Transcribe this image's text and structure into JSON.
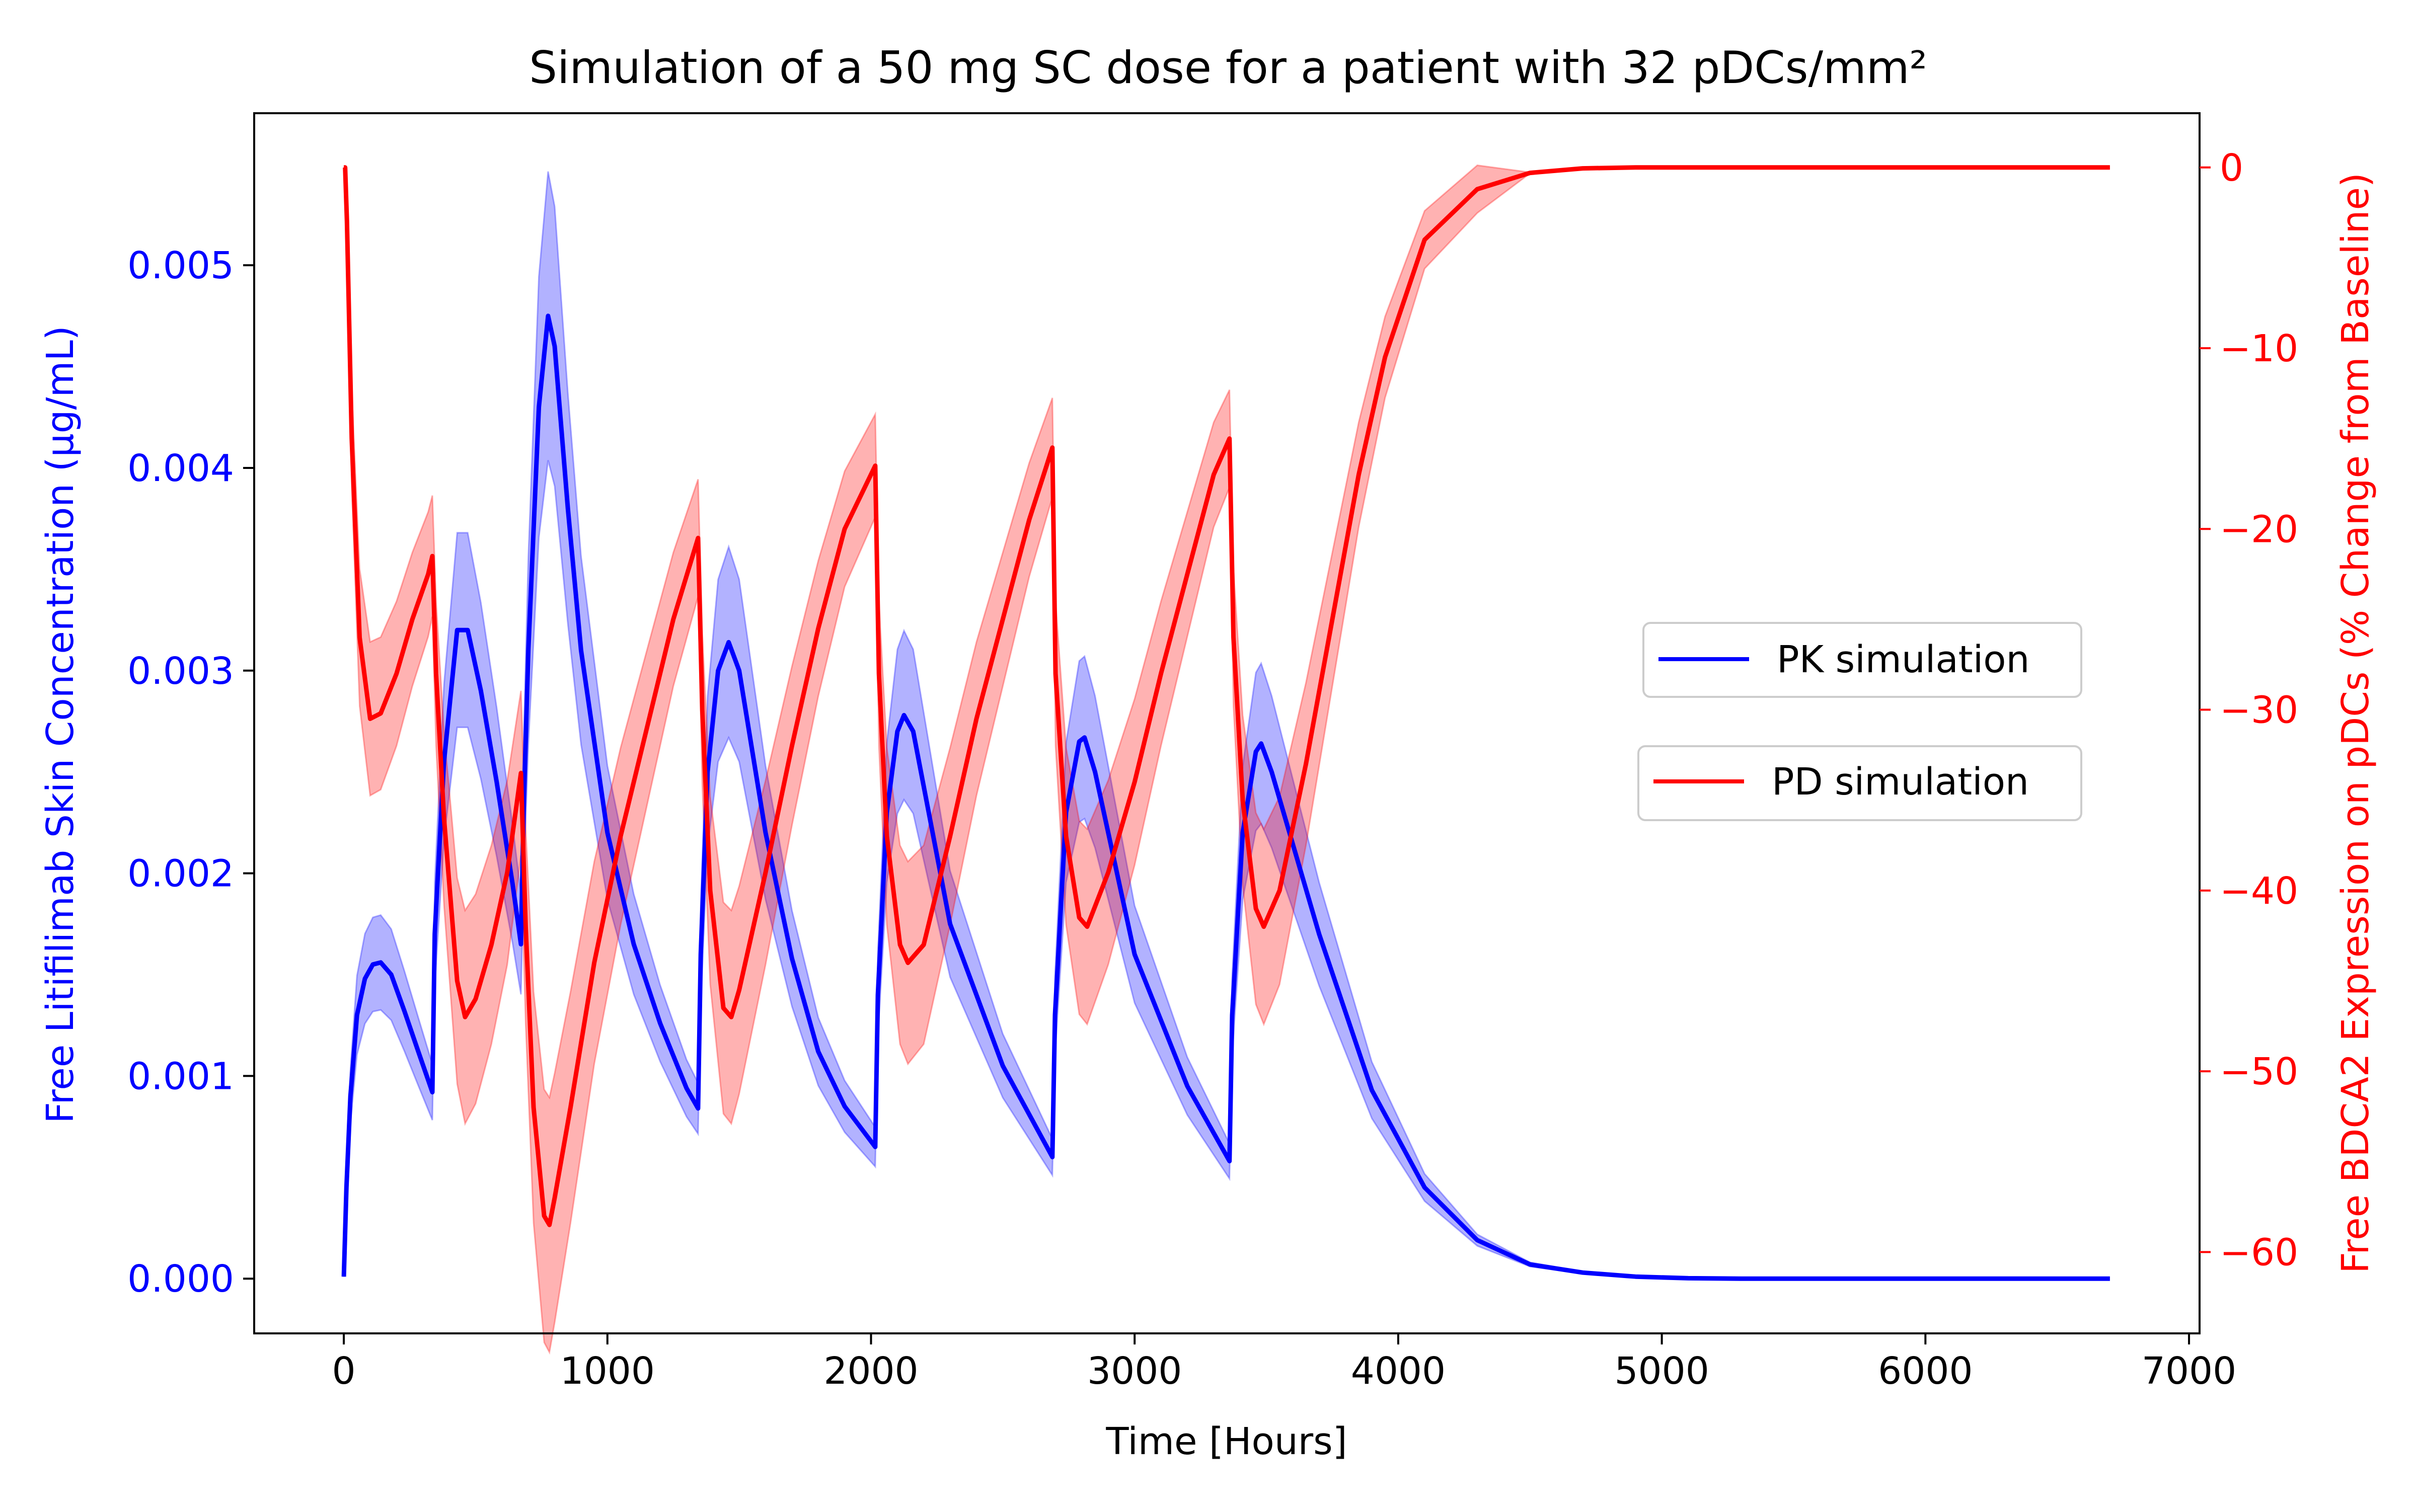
{
  "chart_data": {
    "type": "line",
    "title": "Simulation of a 50 mg SC dose for a patient with 32 pDCs/mm²",
    "xlabel": "Time [Hours]",
    "ylabel_left": "Free Litifilimab Skin Concentration (µg/mL)",
    "ylabel_right": "Free BDCA2 Expression on pDCs (% Change from Baseline)",
    "xlim": [
      -340,
      7040
    ],
    "ylim_left": [
      -0.00027,
      0.00575
    ],
    "ylim_right": [
      -64.5,
      3.0
    ],
    "x_ticks": [
      0,
      1000,
      2000,
      3000,
      4000,
      5000,
      6000,
      7000
    ],
    "x_tick_labels": [
      "0",
      "1000",
      "2000",
      "3000",
      "4000",
      "5000",
      "6000",
      "7000"
    ],
    "y_ticks_left": [
      0.0,
      0.001,
      0.002,
      0.003,
      0.004,
      0.005
    ],
    "y_tick_labels_left": [
      "0.000",
      "0.001",
      "0.002",
      "0.003",
      "0.004",
      "0.005"
    ],
    "y_ticks_right": [
      0,
      -10,
      -20,
      -30,
      -40,
      -50,
      -60
    ],
    "y_tick_labels_right": [
      "0",
      "−10",
      "−20",
      "−30",
      "−40",
      "−50",
      "−60"
    ],
    "grid": false,
    "legend_placement": "center-right",
    "colors": {
      "pk": "#0000ff",
      "pd": "#ff0000",
      "left_axis": "#0000ff",
      "right_axis": "#ff0000"
    },
    "series": [
      {
        "name": "PK simulation",
        "axis": "left",
        "x": [
          0,
          10,
          25,
          50,
          80,
          110,
          140,
          180,
          230,
          280,
          336,
          345,
          380,
          430,
          470,
          520,
          580,
          640,
          672,
          682,
          700,
          740,
          775,
          800,
          850,
          900,
          1000,
          1100,
          1200,
          1300,
          1344,
          1354,
          1380,
          1420,
          1460,
          1500,
          1600,
          1700,
          1800,
          1900,
          2016,
          2026,
          2060,
          2100,
          2125,
          2160,
          2300,
          2500,
          2688,
          2698,
          2740,
          2790,
          2810,
          2850,
          3000,
          3200,
          3360,
          3370,
          3410,
          3460,
          3480,
          3520,
          3700,
          3900,
          4100,
          4300,
          4500,
          4700,
          4900,
          5100,
          5300,
          5600,
          6000,
          6400,
          6700
        ],
        "y": [
          1e-05,
          0.00045,
          0.0009,
          0.0013,
          0.00148,
          0.00155,
          0.00156,
          0.0015,
          0.00132,
          0.00113,
          0.00092,
          0.0017,
          0.00255,
          0.0032,
          0.0032,
          0.0029,
          0.00245,
          0.00195,
          0.00165,
          0.0023,
          0.0031,
          0.0043,
          0.00475,
          0.0046,
          0.0038,
          0.0031,
          0.0022,
          0.00165,
          0.00126,
          0.00094,
          0.00084,
          0.0016,
          0.0025,
          0.003,
          0.00314,
          0.003,
          0.0022,
          0.00158,
          0.00112,
          0.00085,
          0.00065,
          0.0014,
          0.0023,
          0.0027,
          0.00278,
          0.0027,
          0.00175,
          0.00105,
          0.0006,
          0.0013,
          0.0023,
          0.00265,
          0.00267,
          0.0025,
          0.0016,
          0.00095,
          0.00058,
          0.0013,
          0.0022,
          0.0026,
          0.00264,
          0.0025,
          0.0017,
          0.00093,
          0.00045,
          0.00019,
          7e-05,
          3e-05,
          1e-05,
          2e-06,
          0.0,
          0.0,
          0.0,
          0.0,
          0.0
        ]
      },
      {
        "name": "PD simulation",
        "axis": "right",
        "x": [
          0,
          5,
          12,
          30,
          60,
          100,
          140,
          200,
          260,
          320,
          336,
          350,
          380,
          430,
          460,
          500,
          560,
          620,
          672,
          690,
          720,
          760,
          780,
          800,
          860,
          950,
          1050,
          1150,
          1250,
          1344,
          1360,
          1390,
          1440,
          1470,
          1500,
          1600,
          1700,
          1800,
          1900,
          2016,
          2030,
          2060,
          2110,
          2140,
          2200,
          2300,
          2400,
          2500,
          2600,
          2688,
          2700,
          2740,
          2790,
          2820,
          2900,
          3000,
          3100,
          3200,
          3300,
          3360,
          3375,
          3410,
          3460,
          3490,
          3550,
          3650,
          3750,
          3850,
          3950,
          4100,
          4300,
          4500,
          4700,
          4900,
          5100,
          5300,
          5600,
          6000,
          6400,
          6700
        ],
        "y": [
          0,
          0,
          -3,
          -15,
          -26,
          -30.5,
          -30.2,
          -28,
          -25,
          -22.5,
          -21.5,
          -28,
          -36,
          -45,
          -47,
          -46,
          -43,
          -39,
          -33.5,
          -42,
          -52,
          -58,
          -58.5,
          -57,
          -52,
          -44,
          -37,
          -31,
          -25,
          -20.5,
          -30,
          -40,
          -46.5,
          -47,
          -45.5,
          -39,
          -32,
          -25.5,
          -20,
          -16.5,
          -28,
          -37,
          -43,
          -44,
          -43,
          -37,
          -30.5,
          -25,
          -19.5,
          -15.5,
          -28,
          -37,
          -41.5,
          -42,
          -39,
          -34,
          -28,
          -22.5,
          -17,
          -15,
          -26,
          -35,
          -41,
          -42,
          -40,
          -33,
          -25,
          -17,
          -10.5,
          -4,
          -1.2,
          -0.3,
          -0.05,
          0,
          0,
          0,
          0,
          0,
          0,
          0
        ]
      }
    ],
    "uncertainty_band": "shaded band around each simulated line"
  }
}
